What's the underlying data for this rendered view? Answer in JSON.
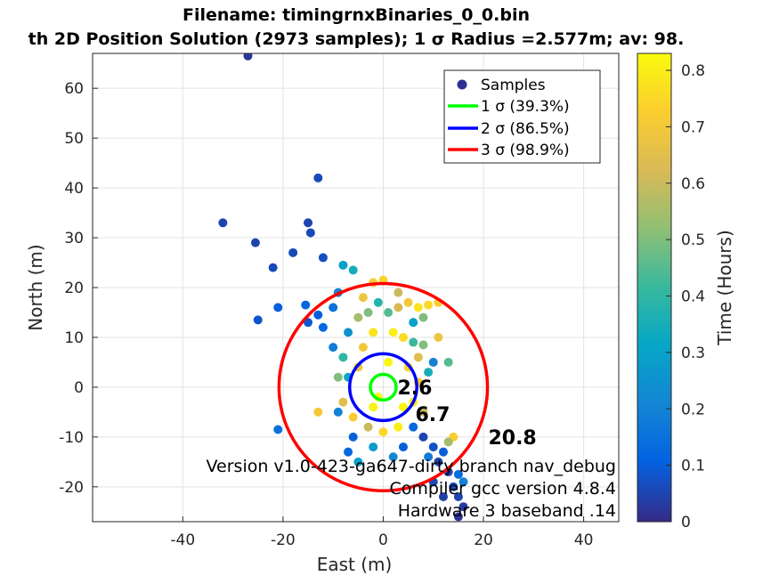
{
  "chart_data": {
    "type": "scatter",
    "title": "Filename: timingrnxBinaries_0_0.bin",
    "subtitle": "th 2D Position Solution (2973 samples); 1 σ Radius =2.577m; av: 98.",
    "xlabel": "East (m)",
    "ylabel": "North (m)",
    "xlim": [
      -58,
      47
    ],
    "ylim": [
      -27,
      67
    ],
    "xticks": [
      "-40",
      "-20",
      "0",
      "20",
      "40"
    ],
    "xtick_values": [
      -40,
      -20,
      0,
      20,
      40
    ],
    "yticks": [
      "-20",
      "-10",
      "0",
      "10",
      "20",
      "30",
      "40",
      "50",
      "60"
    ],
    "ytick_values": [
      -20,
      -10,
      0,
      10,
      20,
      30,
      40,
      50,
      60
    ],
    "grid": true,
    "legend": {
      "position": "top-right",
      "entries": [
        {
          "label": "Samples",
          "marker": "dot",
          "color": "#2e3192"
        },
        {
          "label": "1 σ (39.3%)",
          "marker": "line",
          "color": "#00ff00"
        },
        {
          "label": "2 σ (86.5%)",
          "marker": "line",
          "color": "#0000ff"
        },
        {
          "label": "3 σ (98.9%)",
          "marker": "line",
          "color": "#ff0000"
        }
      ]
    },
    "circles": [
      {
        "name": "1 σ",
        "radius": 2.577,
        "label": "2.6",
        "color": "#00ff00"
      },
      {
        "name": "2 σ",
        "radius": 6.7,
        "label": "6.7",
        "color": "#0000ff"
      },
      {
        "name": "3 σ",
        "radius": 20.8,
        "label": "20.8",
        "color": "#ff0000"
      }
    ],
    "colorbar": {
      "label": "Time (Hours)",
      "range": [
        0,
        0.83
      ],
      "ticks": [
        "0",
        "0.1",
        "0.2",
        "0.3",
        "0.4",
        "0.5",
        "0.6",
        "0.7",
        "0.8"
      ],
      "tick_values": [
        0,
        0.1,
        0.2,
        0.3,
        0.4,
        0.5,
        0.6,
        0.7,
        0.8
      ],
      "colormap": "parula"
    },
    "points": [
      {
        "x": -27,
        "y": 66.5,
        "t": 0.02
      },
      {
        "x": -13,
        "y": 42,
        "t": 0.06
      },
      {
        "x": -32,
        "y": 33,
        "t": 0.05
      },
      {
        "x": -15,
        "y": 33,
        "t": 0.05
      },
      {
        "x": -14.5,
        "y": 31,
        "t": 0.06
      },
      {
        "x": -25.5,
        "y": 29,
        "t": 0.05
      },
      {
        "x": -18,
        "y": 27,
        "t": 0.06
      },
      {
        "x": -22,
        "y": 24,
        "t": 0.06
      },
      {
        "x": -12,
        "y": 26,
        "t": 0.07
      },
      {
        "x": -25,
        "y": 13.5,
        "t": 0.08
      },
      {
        "x": -21,
        "y": 16,
        "t": 0.1
      },
      {
        "x": -15.5,
        "y": 16.5,
        "t": 0.12
      },
      {
        "x": -13,
        "y": 14.5,
        "t": 0.1
      },
      {
        "x": -15,
        "y": 13,
        "t": 0.09
      },
      {
        "x": -8,
        "y": 24.5,
        "t": 0.3
      },
      {
        "x": -6,
        "y": 23.5,
        "t": 0.35
      },
      {
        "x": -9,
        "y": 19,
        "t": 0.2
      },
      {
        "x": -10,
        "y": 16,
        "t": 0.15
      },
      {
        "x": -12,
        "y": 12,
        "t": 0.12
      },
      {
        "x": -21,
        "y": -8.5,
        "t": 0.15
      },
      {
        "x": -13,
        "y": -5,
        "t": 0.7
      },
      {
        "x": -10,
        "y": 8,
        "t": 0.18
      },
      {
        "x": -9,
        "y": 2,
        "t": 0.5
      },
      {
        "x": -9,
        "y": -5,
        "t": 0.2
      },
      {
        "x": -8,
        "y": -3,
        "t": 0.65
      },
      {
        "x": -8,
        "y": 6,
        "t": 0.4
      },
      {
        "x": -7,
        "y": 11,
        "t": 0.25
      },
      {
        "x": -6,
        "y": -10,
        "t": 0.1
      },
      {
        "x": -7,
        "y": -13,
        "t": 0.12
      },
      {
        "x": -5,
        "y": 14,
        "t": 0.55
      },
      {
        "x": -4,
        "y": 18,
        "t": 0.68
      },
      {
        "x": -2,
        "y": 21,
        "t": 0.72
      },
      {
        "x": 0,
        "y": 21.5,
        "t": 0.74
      },
      {
        "x": 3,
        "y": 19,
        "t": 0.6
      },
      {
        "x": 5,
        "y": 17,
        "t": 0.7
      },
      {
        "x": 7,
        "y": 16,
        "t": 0.78
      },
      {
        "x": 9,
        "y": 16.5,
        "t": 0.75
      },
      {
        "x": 11,
        "y": 17,
        "t": 0.72
      },
      {
        "x": 8,
        "y": 14,
        "t": 0.5
      },
      {
        "x": 6,
        "y": 13,
        "t": 0.3
      },
      {
        "x": 11,
        "y": 10,
        "t": 0.68
      },
      {
        "x": 8,
        "y": 8.5,
        "t": 0.5
      },
      {
        "x": 7,
        "y": 6,
        "t": 0.65
      },
      {
        "x": 10,
        "y": 5,
        "t": 0.2
      },
      {
        "x": 13,
        "y": 5,
        "t": 0.45
      },
      {
        "x": 9,
        "y": 3,
        "t": 0.35
      },
      {
        "x": 7,
        "y": 1,
        "t": 0.72
      },
      {
        "x": 6,
        "y": -3,
        "t": 0.8
      },
      {
        "x": 8,
        "y": -5,
        "t": 0.6
      },
      {
        "x": 6,
        "y": -8,
        "t": 0.12
      },
      {
        "x": 8,
        "y": -10,
        "t": 0.05
      },
      {
        "x": 10,
        "y": -12,
        "t": 0.08
      },
      {
        "x": 12,
        "y": -13,
        "t": 0.1
      },
      {
        "x": 14,
        "y": -10,
        "t": 0.72
      },
      {
        "x": 13,
        "y": -11,
        "t": 0.55
      },
      {
        "x": 11,
        "y": -15,
        "t": 0.05
      },
      {
        "x": 13,
        "y": -17,
        "t": 0.04
      },
      {
        "x": 15,
        "y": -17.5,
        "t": 0.14
      },
      {
        "x": 16,
        "y": -19,
        "t": 0.2
      },
      {
        "x": 10,
        "y": -19,
        "t": 0.06
      },
      {
        "x": 14,
        "y": -20,
        "t": 0.06
      },
      {
        "x": 12,
        "y": -22,
        "t": 0.04
      },
      {
        "x": 15,
        "y": -22,
        "t": 0.05
      },
      {
        "x": 16,
        "y": -24,
        "t": 0.03
      },
      {
        "x": 15,
        "y": -26,
        "t": 0.02
      },
      {
        "x": 9,
        "y": -14,
        "t": 0.18
      },
      {
        "x": 4,
        "y": -12,
        "t": 0.1
      },
      {
        "x": 2,
        "y": -14,
        "t": 0.22
      },
      {
        "x": -2,
        "y": -12,
        "t": 0.28
      },
      {
        "x": -5,
        "y": -15,
        "t": 0.3
      },
      {
        "x": -3,
        "y": -8,
        "t": 0.6
      },
      {
        "x": 0,
        "y": -9,
        "t": 0.75
      },
      {
        "x": 3,
        "y": -8,
        "t": 0.8
      },
      {
        "x": -4,
        "y": 8,
        "t": 0.7
      },
      {
        "x": -2,
        "y": 11,
        "t": 0.78
      },
      {
        "x": 2,
        "y": 11,
        "t": 0.8
      },
      {
        "x": 4,
        "y": 10,
        "t": 0.76
      },
      {
        "x": -5,
        "y": 4,
        "t": 0.68
      },
      {
        "x": 5,
        "y": 4,
        "t": 0.74
      },
      {
        "x": -6,
        "y": -6,
        "t": 0.72
      },
      {
        "x": 1,
        "y": 15,
        "t": 0.45
      },
      {
        "x": -1,
        "y": 17,
        "t": 0.38
      },
      {
        "x": 3,
        "y": 16,
        "t": 0.62
      },
      {
        "x": -3,
        "y": 15,
        "t": 0.5
      },
      {
        "x": 6,
        "y": 9,
        "t": 0.42
      },
      {
        "x": -7,
        "y": 2,
        "t": 0.33
      },
      {
        "x": 4,
        "y": -4,
        "t": 0.82
      },
      {
        "x": -2,
        "y": -4,
        "t": 0.81
      },
      {
        "x": 1,
        "y": 5,
        "t": 0.82
      },
      {
        "x": -1,
        "y": -2,
        "t": 0.82
      }
    ]
  },
  "annotations": {
    "version": "Version v1.0-423-ga647-dirty branch nav_debug",
    "compiler": "Compiler gcc version 4.8.4",
    "hardware": "Hardware 3 baseband .14"
  }
}
